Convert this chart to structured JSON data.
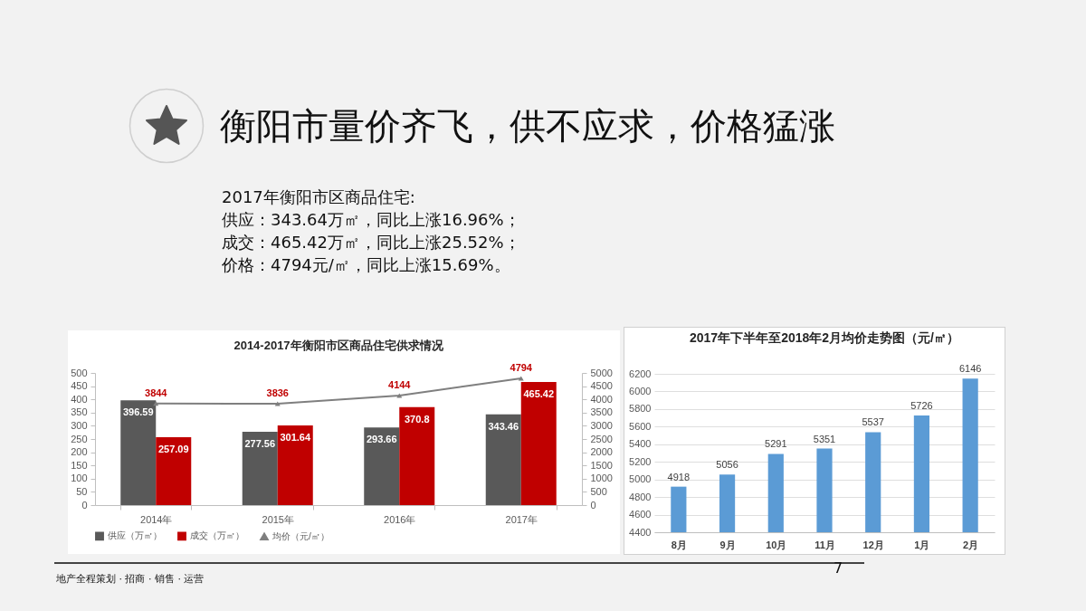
{
  "chart_data": [
    {
      "type": "other",
      "title": "衡阳市量价齐飞，供不应求，价格猛涨",
      "annotations": [
        "2017年衡阳市区商品住宅:",
        "供应：343.64万㎡，同比上涨16.96%；",
        "成交：465.42万㎡，同比上涨25.52%；",
        "价格：4794元/㎡，同比上涨15.69%。",
        "地产全程策划 · 招商 · 销售 · 运营",
        "7"
      ]
    },
    {
      "type": "bar",
      "title": "2014-2017年衡阳市区商品住宅供求情况",
      "categories": [
        "2014年",
        "2015年",
        "2016年",
        "2017年"
      ],
      "series": [
        {
          "name": "供应（万㎡）",
          "color": "#595959",
          "values": [
            396.59,
            277.56,
            293.66,
            343.46
          ]
        },
        {
          "name": "成交（万㎡）",
          "color": "#c00000",
          "values": [
            257.09,
            301.64,
            370.8,
            465.42
          ]
        },
        {
          "name": "均价（元/㎡）",
          "type": "line",
          "axis": "y2",
          "color": "#7f7f7f",
          "values": [
            3844,
            3836,
            4144,
            4794
          ]
        }
      ],
      "ylim": [
        0,
        500
      ],
      "yticks": [
        0,
        50,
        100,
        150,
        200,
        250,
        300,
        350,
        400,
        450,
        500
      ],
      "y2lim": [
        0,
        5000
      ],
      "y2ticks": [
        0,
        500,
        1000,
        1500,
        2000,
        2500,
        3000,
        3500,
        4000,
        4500,
        5000
      ],
      "marker": "triangle",
      "data_labels": true,
      "legend": "bottom"
    },
    {
      "type": "bar",
      "title": "2017年下半年至2018年2月均价走势图（元/㎡）",
      "categories": [
        "8月",
        "9月",
        "10月",
        "11月",
        "12月",
        "1月",
        "2月"
      ],
      "values": [
        4918,
        5056,
        5291,
        5351,
        5537,
        5726,
        6146
      ],
      "color": "#5b9bd5",
      "ylim": [
        4400,
        6200
      ],
      "yticks": [
        4400,
        4600,
        4800,
        5000,
        5200,
        5400,
        5600,
        5800,
        6000,
        6200
      ],
      "grid": "y",
      "data_labels": true
    }
  ]
}
